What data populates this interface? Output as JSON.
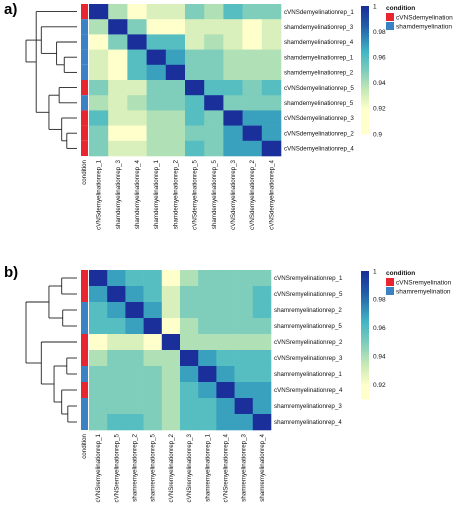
{
  "colors": {
    "cVNS": "#e8262f",
    "sham": "#3a82c4",
    "scale_low": "#ffffcc",
    "scale_mid_low": "#c7e9b4",
    "scale_mid": "#7fcdbb",
    "scale_mid_high": "#41b6c4",
    "scale_high": "#225ea8",
    "scale_top": "#1a2f9a"
  },
  "chart_data": [
    {
      "type": "heatmap",
      "panel_label": "a)",
      "annotation_label": "condition",
      "legend_title": "condition",
      "legend_entries": [
        "cVNSdemyelination",
        "shamdemyelination"
      ],
      "colorbar_ticks": [
        "1",
        "0.98",
        "0.96",
        "0.94",
        "0.92",
        "0.9"
      ],
      "colorbar_values": [
        1,
        0.98,
        0.96,
        0.94,
        0.92,
        0.9
      ],
      "value_range": [
        0.9,
        1
      ],
      "rows": [
        "cVNSdemyelinationrep_1",
        "shamdemyelinationrep_3",
        "shamdemyelinationrep_4",
        "shamdemyelinationrep_1",
        "shamdemyelinationrep_2",
        "cVNSdemyelinationrep_5",
        "shamdemyelinationrep_5",
        "cVNSdemyelinationrep_3",
        "cVNSdemyelinationrep_2",
        "cVNSdemyelinationrep_4"
      ],
      "columns": [
        "cVNSdemyelinationrep_1",
        "shamdemyelinationrep_3",
        "shamdemyelinationrep_4",
        "shamdemyelinationrep_1",
        "shamdemyelinationrep_2",
        "cVNSdemyelinationrep_5",
        "shamdemyelinationrep_5",
        "cVNSdemyelinationrep_3",
        "cVNSdemyelinationrep_2",
        "cVNSdemyelinationrep_4"
      ],
      "condition": [
        "cVNS",
        "sham",
        "sham",
        "sham",
        "sham",
        "cVNS",
        "sham",
        "cVNS",
        "cVNS",
        "cVNS"
      ],
      "values": [
        [
          1.0,
          0.94,
          0.92,
          0.93,
          0.93,
          0.95,
          0.94,
          0.96,
          0.95,
          0.95
        ],
        [
          0.94,
          1.0,
          0.95,
          0.92,
          0.92,
          0.93,
          0.93,
          0.93,
          0.92,
          0.93
        ],
        [
          0.92,
          0.95,
          1.0,
          0.96,
          0.96,
          0.93,
          0.94,
          0.93,
          0.92,
          0.93
        ],
        [
          0.93,
          0.92,
          0.96,
          1.0,
          0.97,
          0.95,
          0.95,
          0.94,
          0.94,
          0.94
        ],
        [
          0.93,
          0.92,
          0.96,
          0.97,
          1.0,
          0.95,
          0.95,
          0.94,
          0.94,
          0.94
        ],
        [
          0.95,
          0.93,
          0.93,
          0.95,
          0.95,
          1.0,
          0.96,
          0.96,
          0.95,
          0.96
        ],
        [
          0.94,
          0.93,
          0.94,
          0.95,
          0.95,
          0.96,
          1.0,
          0.95,
          0.95,
          0.95
        ],
        [
          0.96,
          0.93,
          0.93,
          0.94,
          0.94,
          0.96,
          0.95,
          1.0,
          0.97,
          0.97
        ],
        [
          0.95,
          0.92,
          0.92,
          0.94,
          0.94,
          0.95,
          0.95,
          0.97,
          1.0,
          0.97
        ],
        [
          0.95,
          0.93,
          0.93,
          0.94,
          0.94,
          0.96,
          0.95,
          0.97,
          0.97,
          1.0
        ]
      ]
    },
    {
      "type": "heatmap",
      "panel_label": "b)",
      "annotation_label": "condition",
      "legend_title": "condition",
      "legend_entries": [
        "cVNSremyelination",
        "shamremyelination"
      ],
      "colorbar_ticks": [
        "1",
        "0.98",
        "0.96",
        "0.94",
        "0.92"
      ],
      "colorbar_values": [
        1,
        0.98,
        0.96,
        0.94,
        0.92
      ],
      "value_range": [
        0.91,
        1
      ],
      "rows": [
        "cVNSremyelinationrep_1",
        "cVNSremyelinationrep_5",
        "shamremyelinationrep_2",
        "shamremyelinationrep_5",
        "cVNSremyelinationrep_2",
        "cVNSremyelinationrep_3",
        "shamremyelinationrep_1",
        "cVNSremyelinationrep_4",
        "shamremyelinationrep_3",
        "shamremyelinationrep_4"
      ],
      "columns": [
        "cVNSremyelinationrep_1",
        "cVNSremyelinationrep_5",
        "shamremyelinationrep_2",
        "shamremyelinationrep_5",
        "cVNSremyelinationrep_2",
        "cVNSremyelinationrep_3",
        "shamremyelinationrep_1",
        "cVNSremyelinationrep_4",
        "shamremyelinationrep_3",
        "shamremyelinationrep_4"
      ],
      "condition": [
        "cVNS",
        "cVNS",
        "sham",
        "sham",
        "cVNS",
        "cVNS",
        "sham",
        "cVNS",
        "sham",
        "sham"
      ],
      "values": [
        [
          1.0,
          0.97,
          0.96,
          0.96,
          0.92,
          0.94,
          0.95,
          0.95,
          0.95,
          0.95
        ],
        [
          0.97,
          1.0,
          0.97,
          0.96,
          0.93,
          0.95,
          0.95,
          0.95,
          0.95,
          0.96
        ],
        [
          0.96,
          0.97,
          1.0,
          0.97,
          0.93,
          0.95,
          0.95,
          0.95,
          0.95,
          0.96
        ],
        [
          0.96,
          0.96,
          0.97,
          1.0,
          0.92,
          0.94,
          0.95,
          0.95,
          0.95,
          0.95
        ],
        [
          0.92,
          0.93,
          0.93,
          0.92,
          1.0,
          0.94,
          0.94,
          0.94,
          0.94,
          0.94
        ],
        [
          0.94,
          0.95,
          0.95,
          0.94,
          0.94,
          1.0,
          0.97,
          0.96,
          0.96,
          0.96
        ],
        [
          0.95,
          0.95,
          0.95,
          0.95,
          0.94,
          0.97,
          1.0,
          0.97,
          0.96,
          0.96
        ],
        [
          0.95,
          0.95,
          0.95,
          0.95,
          0.94,
          0.96,
          0.97,
          1.0,
          0.97,
          0.97
        ],
        [
          0.95,
          0.95,
          0.95,
          0.95,
          0.94,
          0.96,
          0.96,
          0.97,
          1.0,
          0.97
        ],
        [
          0.95,
          0.96,
          0.96,
          0.95,
          0.94,
          0.96,
          0.96,
          0.97,
          0.97,
          1.0
        ]
      ]
    }
  ]
}
